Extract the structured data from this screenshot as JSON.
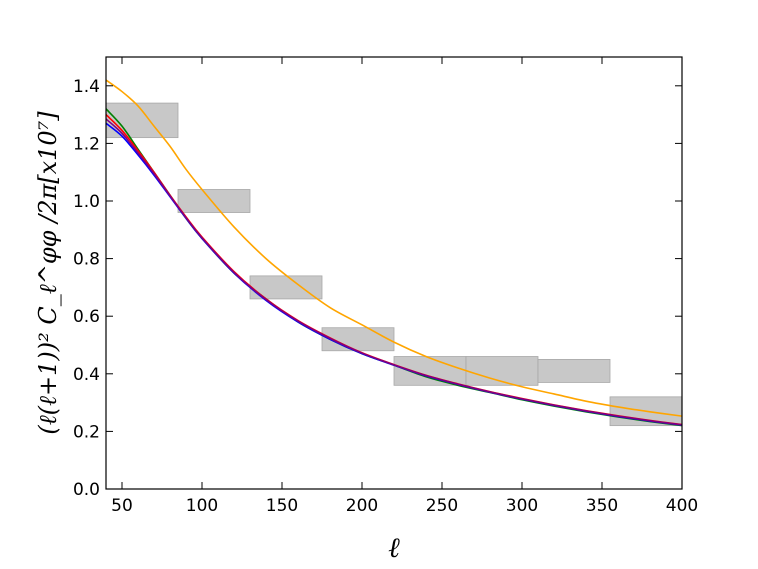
{
  "chart_data": {
    "type": "line",
    "xlabel": "ℓ",
    "ylabel": "(ℓ(ℓ+1))² C_ℓ^φφ /2π[x10⁷]",
    "xlim": [
      40,
      400
    ],
    "ylim": [
      0.0,
      1.5
    ],
    "x_ticks": [
      50,
      100,
      150,
      200,
      250,
      300,
      350,
      400
    ],
    "y_ticks": [
      0.0,
      0.2,
      0.4,
      0.6,
      0.8,
      1.0,
      1.2,
      1.4
    ],
    "grid": false,
    "error_boxes": {
      "color": "#c8c8c8",
      "boxes": [
        {
          "x0": 40,
          "x1": 85,
          "y0": 1.22,
          "y1": 1.34
        },
        {
          "x0": 85,
          "x1": 130,
          "y0": 0.96,
          "y1": 1.04
        },
        {
          "x0": 130,
          "x1": 175,
          "y0": 0.66,
          "y1": 0.74
        },
        {
          "x0": 175,
          "x1": 220,
          "y0": 0.48,
          "y1": 0.56
        },
        {
          "x0": 220,
          "x1": 265,
          "y0": 0.36,
          "y1": 0.46
        },
        {
          "x0": 265,
          "x1": 310,
          "y0": 0.36,
          "y1": 0.46
        },
        {
          "x0": 310,
          "x1": 355,
          "y0": 0.37,
          "y1": 0.45
        },
        {
          "x0": 355,
          "x1": 400,
          "y0": 0.22,
          "y1": 0.32
        }
      ]
    },
    "series": [
      {
        "color": "#ffa500",
        "x": [
          40,
          50,
          60,
          70,
          80,
          90,
          100,
          120,
          140,
          160,
          180,
          200,
          220,
          240,
          260,
          280,
          300,
          320,
          340,
          360,
          380,
          400
        ],
        "y": [
          1.42,
          1.38,
          1.33,
          1.26,
          1.19,
          1.11,
          1.04,
          0.91,
          0.8,
          0.71,
          0.63,
          0.57,
          0.51,
          0.46,
          0.42,
          0.385,
          0.355,
          0.33,
          0.305,
          0.285,
          0.268,
          0.253
        ]
      },
      {
        "color": "#008000",
        "x": [
          40,
          50,
          60,
          70,
          80,
          90,
          100,
          120,
          140,
          160,
          180,
          200,
          220,
          240,
          260,
          280,
          300,
          320,
          340,
          360,
          380,
          400
        ],
        "y": [
          1.32,
          1.26,
          1.18,
          1.1,
          1.02,
          0.94,
          0.87,
          0.75,
          0.66,
          0.58,
          0.52,
          0.47,
          0.43,
          0.39,
          0.36,
          0.335,
          0.31,
          0.288,
          0.268,
          0.25,
          0.234,
          0.22
        ]
      },
      {
        "color": "#ff0000",
        "x": [
          40,
          50,
          60,
          70,
          80,
          90,
          100,
          120,
          140,
          160,
          180,
          200,
          220,
          240,
          260,
          280,
          300,
          320,
          340,
          360,
          380,
          400
        ],
        "y": [
          1.3,
          1.245,
          1.175,
          1.1,
          1.02,
          0.945,
          0.875,
          0.755,
          0.66,
          0.585,
          0.525,
          0.473,
          0.432,
          0.395,
          0.365,
          0.338,
          0.314,
          0.292,
          0.272,
          0.254,
          0.238,
          0.224
        ]
      },
      {
        "color": "#0000ff",
        "x": [
          40,
          50,
          60,
          70,
          80,
          90,
          100,
          120,
          140,
          160,
          180,
          200,
          220,
          240,
          260,
          280,
          300,
          320,
          340,
          360,
          380,
          400
        ],
        "y": [
          1.27,
          1.225,
          1.16,
          1.09,
          1.015,
          0.94,
          0.87,
          0.75,
          0.655,
          0.58,
          0.52,
          0.47,
          0.43,
          0.393,
          0.363,
          0.336,
          0.312,
          0.29,
          0.27,
          0.252,
          0.236,
          0.222
        ]
      },
      {
        "color": "#800080",
        "x": [
          40,
          50,
          60,
          70,
          80,
          90,
          100,
          120,
          140,
          160,
          180,
          200,
          220,
          240,
          260,
          280,
          300,
          320,
          340,
          360,
          380,
          400
        ],
        "y": [
          1.285,
          1.235,
          1.167,
          1.095,
          1.018,
          0.942,
          0.872,
          0.752,
          0.658,
          0.583,
          0.523,
          0.472,
          0.431,
          0.394,
          0.364,
          0.337,
          0.313,
          0.291,
          0.271,
          0.253,
          0.237,
          0.223
        ]
      }
    ]
  }
}
